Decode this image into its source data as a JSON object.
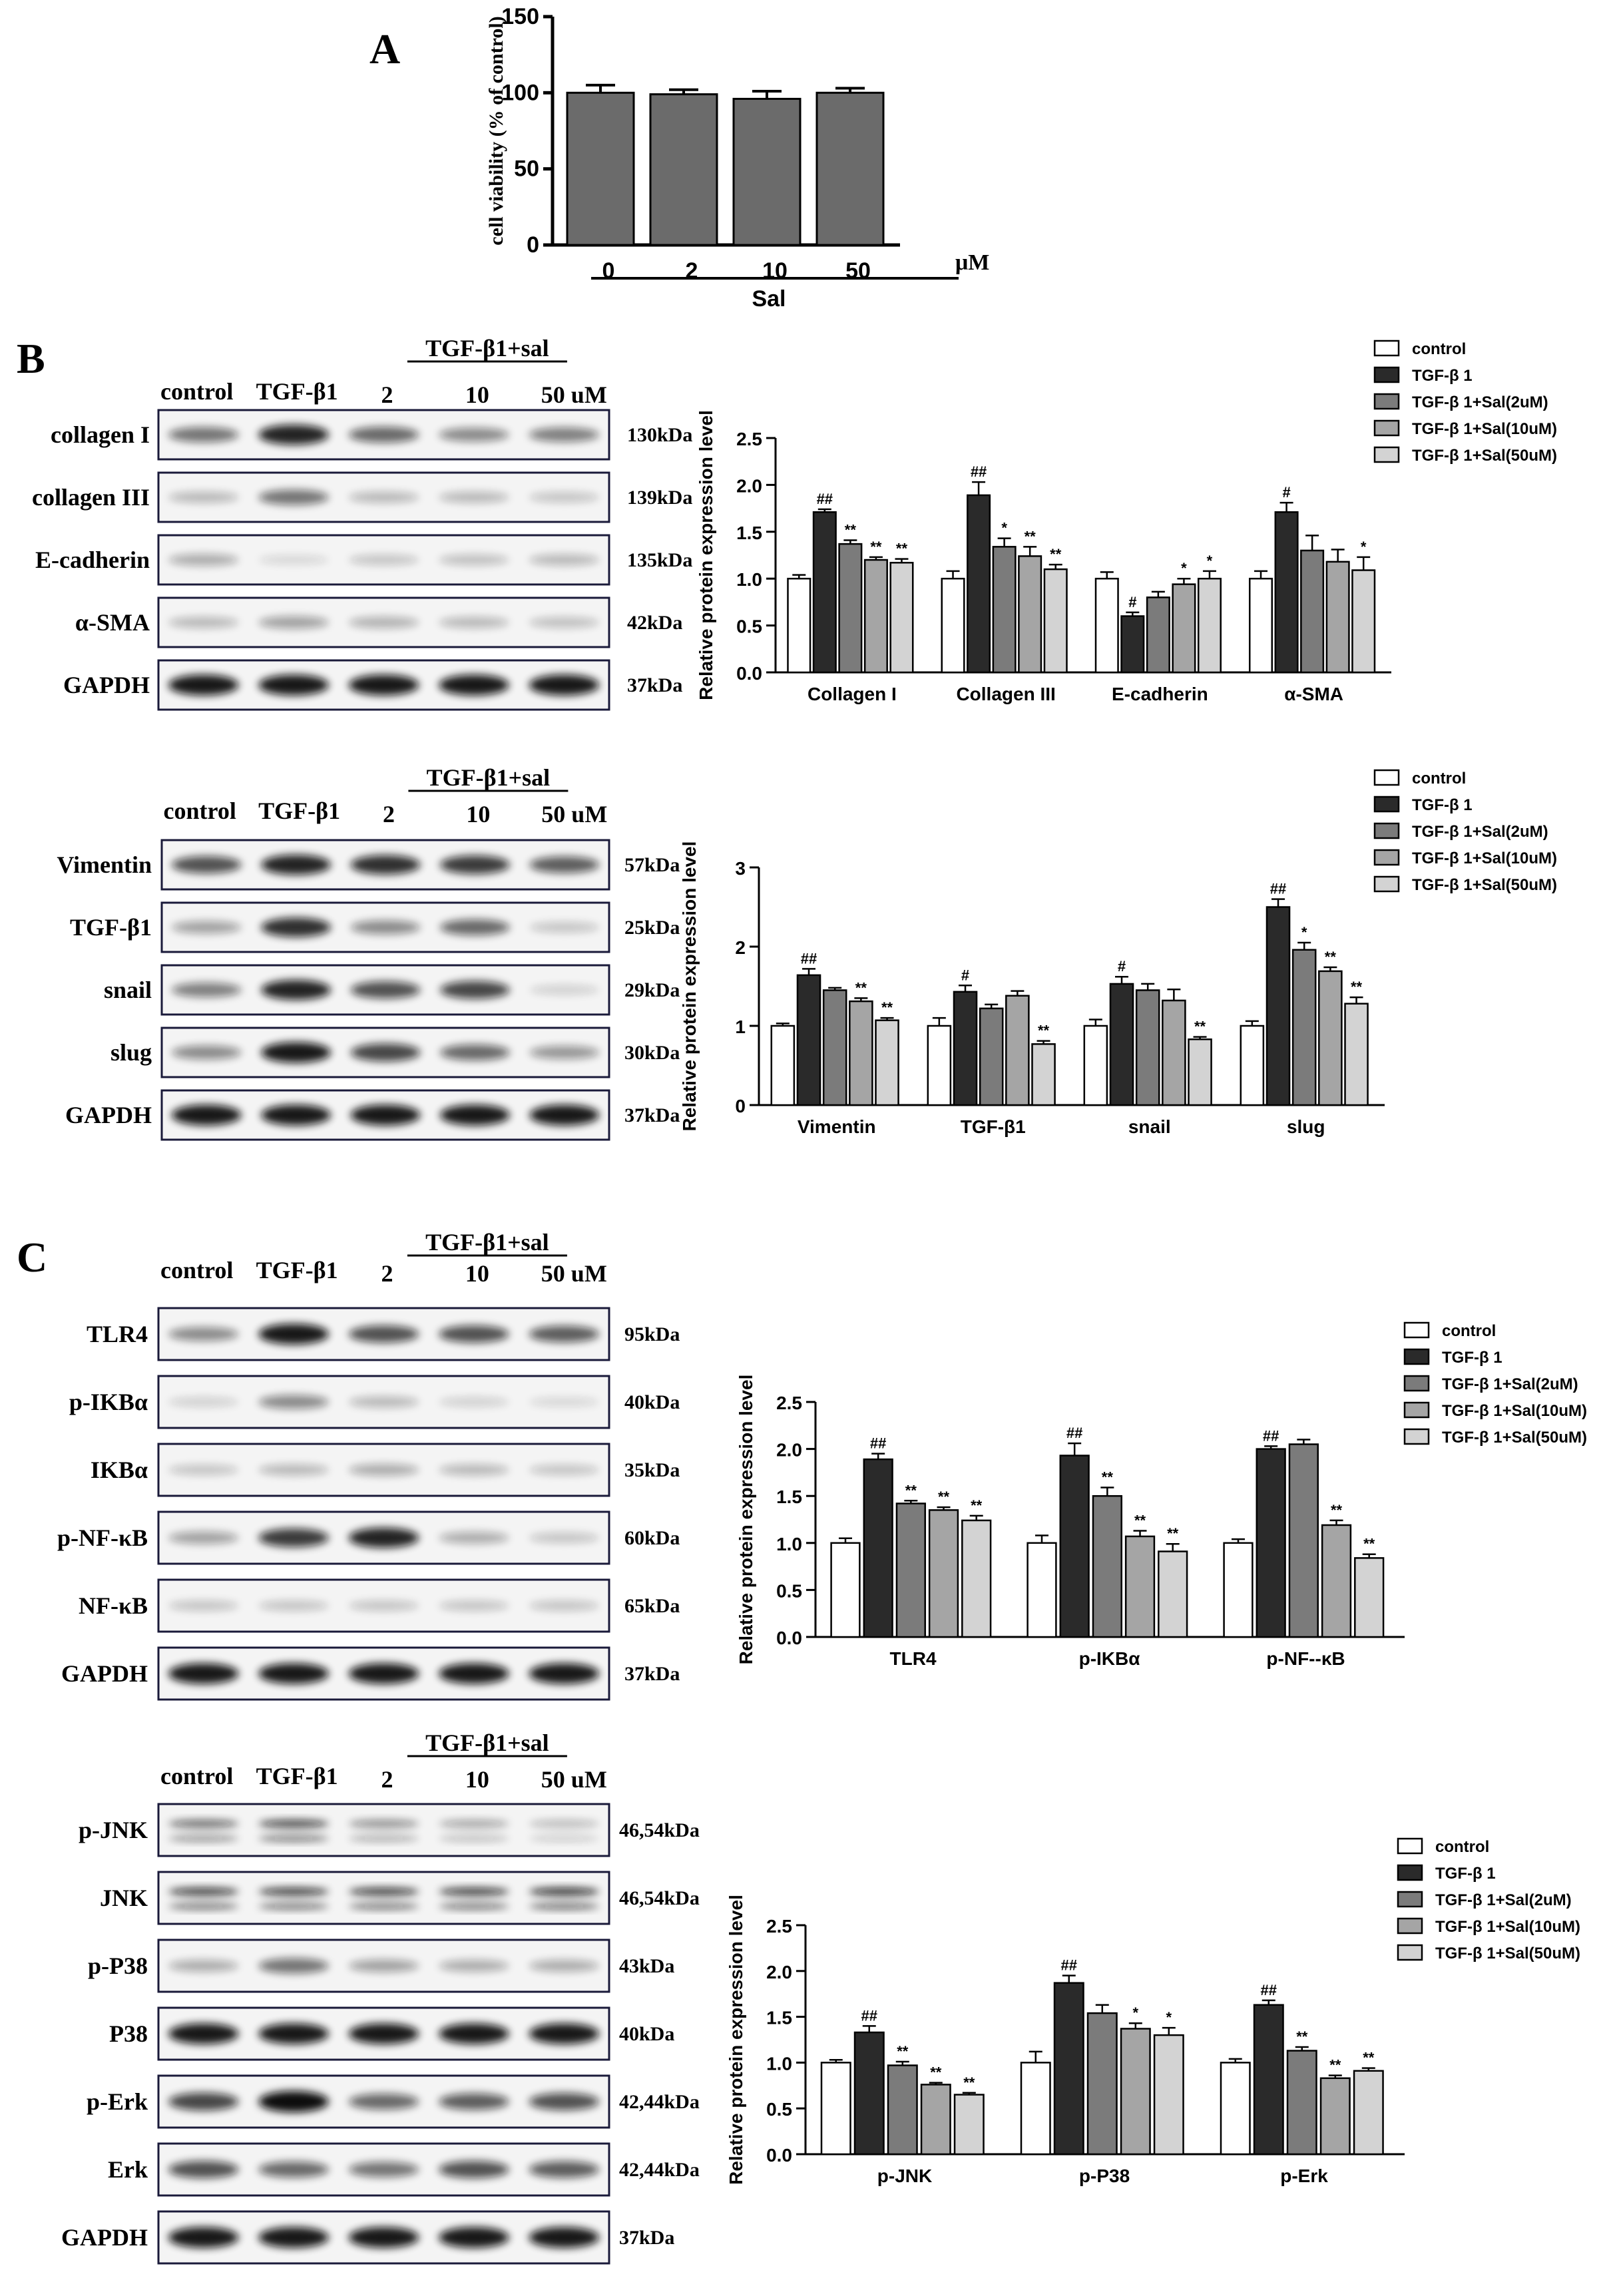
{
  "panels": {
    "a": "A",
    "b": "B",
    "c": "C"
  },
  "axis_label_y": "Relative protein expression level",
  "lane_headers": {
    "control": "control",
    "tgf": "TGF-β1",
    "group": "TGF-β1+sal",
    "d2": "2",
    "d10": "10",
    "d50": "50 uM"
  },
  "legend": [
    "control",
    "TGF-β 1",
    "TGF-β 1+Sal(2uM)",
    "TGF-β 1+Sal(10uM)",
    "TGF-β 1+Sal(50uM)"
  ],
  "blots": [
    {
      "id": "blot1",
      "header": true,
      "lanes": 5,
      "proteins": [
        {
          "name": "collagen I",
          "kda": "130kDa"
        },
        {
          "name": "collagen III",
          "kda": "139kDa"
        },
        {
          "name": "E-cadherin",
          "kda": "135kDa"
        },
        {
          "name": "α-SMA",
          "kda": "42kDa"
        },
        {
          "name": "GAPDH",
          "kda": "37kDa"
        }
      ]
    },
    {
      "id": "blot2",
      "header": true,
      "lanes": 5,
      "proteins": [
        {
          "name": "Vimentin",
          "kda": "57kDa"
        },
        {
          "name": "TGF-β1",
          "kda": "25kDa"
        },
        {
          "name": "snail",
          "kda": "29kDa"
        },
        {
          "name": "slug",
          "kda": "30kDa"
        },
        {
          "name": "GAPDH",
          "kda": "37kDa"
        }
      ]
    },
    {
      "id": "blot3",
      "header": true,
      "lanes": 5,
      "proteins": [
        {
          "name": "TLR4",
          "kda": "95kDa"
        },
        {
          "name": "p-IKBα",
          "kda": "40kDa"
        },
        {
          "name": "IKBα",
          "kda": "35kDa"
        },
        {
          "name": "p-NF-κB",
          "kda": "60kDa"
        },
        {
          "name": "NF-κB",
          "kda": "65kDa"
        },
        {
          "name": "GAPDH",
          "kda": "37kDa"
        }
      ]
    },
    {
      "id": "blot4",
      "header": true,
      "lanes": 5,
      "proteins": [
        {
          "name": "p-JNK",
          "kda": "46,54kDa"
        },
        {
          "name": "JNK",
          "kda": "46,54kDa"
        },
        {
          "name": "p-P38",
          "kda": "43kDa"
        },
        {
          "name": "P38",
          "kda": "40kDa"
        },
        {
          "name": "p-Erk",
          "kda": "42,44kDa"
        },
        {
          "name": "Erk",
          "kda": "42,44kDa"
        },
        {
          "name": "GAPDH",
          "kda": "37kDa"
        }
      ]
    }
  ],
  "chart_data": [
    {
      "id": "chartA",
      "type": "bar",
      "ylabel": "cell viability (% of control)",
      "xlabel": "Sal",
      "xunit": "μM",
      "ylim": [
        0,
        150
      ],
      "yticks": [
        0,
        50,
        100,
        150
      ],
      "categories": [
        "0",
        "2",
        "10",
        "50"
      ],
      "values": [
        100,
        99,
        96,
        100
      ],
      "errors": [
        5,
        3,
        5,
        3
      ],
      "color": "#6b6b6b"
    },
    {
      "id": "chartB1",
      "type": "bar",
      "ylabel": "Relative protein expression level",
      "ylim": [
        0,
        2.5
      ],
      "yticks": [
        0.0,
        0.5,
        1.0,
        1.5,
        2.0,
        2.5
      ],
      "categories": [
        "Collagen I",
        "Collagen III",
        "E-cadherin",
        "α-SMA"
      ],
      "series": [
        {
          "name": "control",
          "values": [
            1.0,
            1.0,
            1.0,
            1.0
          ],
          "errors": [
            0.04,
            0.08,
            0.07,
            0.08
          ]
        },
        {
          "name": "TGF-β 1",
          "values": [
            1.71,
            1.89,
            0.6,
            1.71
          ],
          "errors": [
            0.03,
            0.14,
            0.04,
            0.1
          ],
          "marks": [
            "##",
            "##",
            "#",
            "#"
          ]
        },
        {
          "name": "TGF-β 1+Sal(2uM)",
          "values": [
            1.37,
            1.34,
            0.8,
            1.3
          ],
          "errors": [
            0.04,
            0.09,
            0.06,
            0.16
          ],
          "marks": [
            "**",
            "*",
            "",
            ""
          ]
        },
        {
          "name": "TGF-β 1+Sal(10uM)",
          "values": [
            1.2,
            1.24,
            0.94,
            1.18
          ],
          "errors": [
            0.03,
            0.1,
            0.06,
            0.13
          ],
          "marks": [
            "**",
            "**",
            "*",
            ""
          ]
        },
        {
          "name": "TGF-β 1+Sal(50uM)",
          "values": [
            1.17,
            1.1,
            1.0,
            1.09
          ],
          "errors": [
            0.04,
            0.05,
            0.08,
            0.14
          ],
          "marks": [
            "**",
            "**",
            "*",
            "*"
          ]
        }
      ]
    },
    {
      "id": "chartB2",
      "type": "bar",
      "ylabel": "Relative protein expression level",
      "ylim": [
        0,
        3
      ],
      "yticks": [
        0,
        1,
        2,
        3
      ],
      "categories": [
        "Vimentin",
        "TGF-β1",
        "snail",
        "slug"
      ],
      "series": [
        {
          "name": "control",
          "values": [
            1.0,
            1.0,
            1.0,
            1.0
          ],
          "errors": [
            0.03,
            0.1,
            0.08,
            0.06
          ]
        },
        {
          "name": "TGF-β 1",
          "values": [
            1.64,
            1.43,
            1.53,
            2.5
          ],
          "errors": [
            0.08,
            0.08,
            0.09,
            0.1
          ],
          "marks": [
            "##",
            "#",
            "#",
            "##"
          ]
        },
        {
          "name": "TGF-β 1+Sal(2uM)",
          "values": [
            1.45,
            1.22,
            1.45,
            1.96
          ],
          "errors": [
            0.03,
            0.05,
            0.08,
            0.09
          ],
          "marks": [
            "",
            "",
            "",
            "*"
          ]
        },
        {
          "name": "TGF-β 1+Sal(10uM)",
          "values": [
            1.31,
            1.38,
            1.32,
            1.69
          ],
          "errors": [
            0.04,
            0.06,
            0.14,
            0.05
          ],
          "marks": [
            "**",
            "",
            "",
            "**"
          ]
        },
        {
          "name": "TGF-β 1+Sal(50uM)",
          "values": [
            1.07,
            0.77,
            0.83,
            1.28
          ],
          "errors": [
            0.03,
            0.04,
            0.03,
            0.08
          ],
          "marks": [
            "**",
            "**",
            "**",
            "**"
          ]
        }
      ]
    },
    {
      "id": "chartC1",
      "type": "bar",
      "ylabel": "Relative protein expression level",
      "ylim": [
        0,
        2.5
      ],
      "yticks": [
        0.0,
        0.5,
        1.0,
        1.5,
        2.0,
        2.5
      ],
      "categories": [
        "TLR4",
        "p-IKBα",
        "p-NF--κB"
      ],
      "series": [
        {
          "name": "control",
          "values": [
            1.0,
            1.0,
            1.0
          ],
          "errors": [
            0.05,
            0.08,
            0.04
          ]
        },
        {
          "name": "TGF-β 1",
          "values": [
            1.89,
            1.93,
            2.0
          ],
          "errors": [
            0.06,
            0.13,
            0.03
          ],
          "marks": [
            "##",
            "##",
            "##"
          ]
        },
        {
          "name": "TGF-β 1+Sal(2uM)",
          "values": [
            1.42,
            1.5,
            2.05
          ],
          "errors": [
            0.03,
            0.09,
            0.05
          ],
          "marks": [
            "**",
            "**",
            ""
          ]
        },
        {
          "name": "TGF-β 1+Sal(10uM)",
          "values": [
            1.35,
            1.07,
            1.19
          ],
          "errors": [
            0.03,
            0.06,
            0.05
          ],
          "marks": [
            "**",
            "**",
            "**"
          ]
        },
        {
          "name": "TGF-β 1+Sal(50uM)",
          "values": [
            1.24,
            0.91,
            0.84
          ],
          "errors": [
            0.05,
            0.08,
            0.04
          ],
          "marks": [
            "**",
            "**",
            "**"
          ]
        }
      ]
    },
    {
      "id": "chartC2",
      "type": "bar",
      "ylabel": "Relative protein expression level",
      "ylim": [
        0,
        2.5
      ],
      "yticks": [
        0.0,
        0.5,
        1.0,
        1.5,
        2.0,
        2.5
      ],
      "categories": [
        "p-JNK",
        "p-P38",
        "p-Erk"
      ],
      "series": [
        {
          "name": "control",
          "values": [
            1.0,
            1.0,
            1.0
          ],
          "errors": [
            0.03,
            0.12,
            0.04
          ]
        },
        {
          "name": "TGF-β 1",
          "values": [
            1.33,
            1.87,
            1.63
          ],
          "errors": [
            0.07,
            0.08,
            0.05
          ],
          "marks": [
            "##",
            "##",
            "##"
          ]
        },
        {
          "name": "TGF-β 1+Sal(2uM)",
          "values": [
            0.97,
            1.54,
            1.13
          ],
          "errors": [
            0.04,
            0.09,
            0.04
          ],
          "marks": [
            "**",
            "",
            "**"
          ]
        },
        {
          "name": "TGF-β 1+Sal(10uM)",
          "values": [
            0.76,
            1.37,
            0.83
          ],
          "errors": [
            0.02,
            0.06,
            0.03
          ],
          "marks": [
            "**",
            "*",
            "**"
          ]
        },
        {
          "name": "TGF-β 1+Sal(50uM)",
          "values": [
            0.65,
            1.3,
            0.91
          ],
          "errors": [
            0.02,
            0.08,
            0.03
          ],
          "marks": [
            "**",
            "*",
            "**"
          ]
        }
      ]
    }
  ],
  "colors": {
    "bars": [
      "#ffffff",
      "#2a2a2a",
      "#7b7b7b",
      "#a5a5a5",
      "#d3d3d3"
    ],
    "axis": "#000000"
  }
}
